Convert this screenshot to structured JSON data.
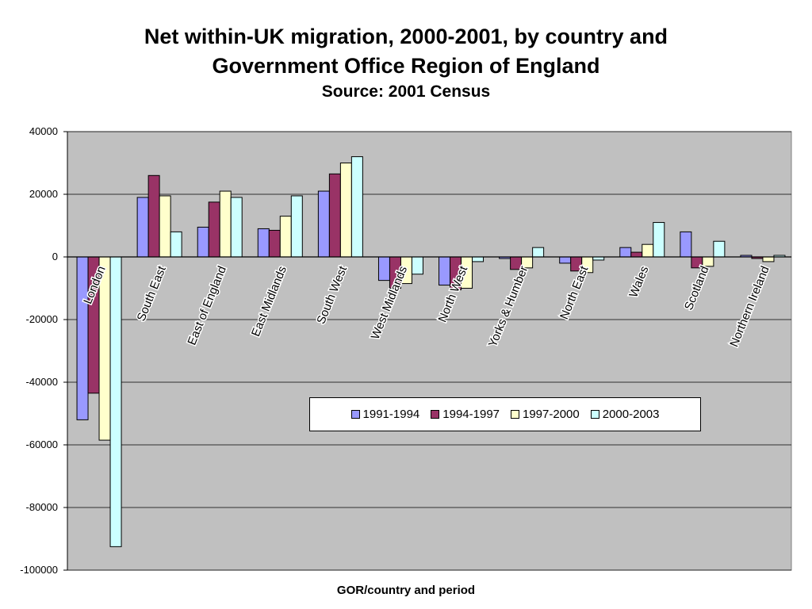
{
  "chart_data": {
    "type": "bar",
    "title_line1": "Net within-UK migration, 2000-2001, by country and",
    "title_line2": "Government Office Region of England",
    "subtitle": "Source: 2001 Census",
    "xlabel": "GOR/country and period",
    "ylabel": "",
    "ylim": [
      -100000,
      40000
    ],
    "yticks": [
      40000,
      20000,
      0,
      -20000,
      -40000,
      -60000,
      -80000,
      -100000
    ],
    "ytick_labels": [
      "40000",
      "20000",
      "0",
      "-20000",
      "-40000",
      "-60000",
      "-80000",
      "-100000"
    ],
    "grid": true,
    "legend_position": "lower-right",
    "plot_background": "#c0c0c0",
    "categories": [
      "London",
      "South East",
      "East of England",
      "East Midlands",
      "South West",
      "West Midlands",
      "North West",
      "Yorks & Humber",
      "North East",
      "Wales",
      "Scotland",
      "Northern Ireland"
    ],
    "series": [
      {
        "name": "1991-1994",
        "color": "#9999ff",
        "values": [
          -52000,
          19000,
          9500,
          9000,
          21000,
          -7500,
          -9000,
          -500,
          -2000,
          3000,
          8000,
          500
        ]
      },
      {
        "name": "1994-1997",
        "color": "#993366",
        "values": [
          -43500,
          26000,
          17500,
          8500,
          26500,
          -10000,
          -10500,
          -4000,
          -4500,
          1500,
          -3500,
          -500
        ]
      },
      {
        "name": "1997-2000",
        "color": "#ffffcc",
        "values": [
          -58500,
          19500,
          21000,
          13000,
          30000,
          -8500,
          -10000,
          -3500,
          -5000,
          4000,
          -3000,
          -1500
        ]
      },
      {
        "name": "2000-2003",
        "color": "#ccffff",
        "values": [
          -92500,
          8000,
          19000,
          19500,
          32000,
          -5500,
          -1500,
          3000,
          -1000,
          11000,
          5000,
          500
        ]
      }
    ]
  }
}
